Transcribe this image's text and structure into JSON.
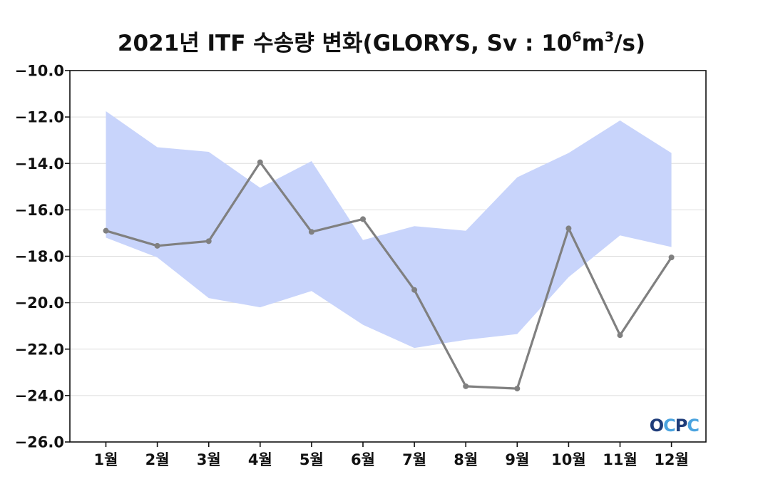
{
  "title": {
    "main": "2021년 ITF 수송량 변화(GLORYS, Sv : 10",
    "sup1": "6",
    "mid": "m",
    "sup2": "3",
    "end": "/s)"
  },
  "logo": {
    "text": "OCPC",
    "color_dark": "#1f3d7a",
    "color_light": "#4aa3df"
  },
  "colors": {
    "band": "#c8d4fb",
    "line": "#808080",
    "grid": "#dddddd"
  },
  "chart_data": {
    "type": "line",
    "categories": [
      "1월",
      "2월",
      "3월",
      "4월",
      "5월",
      "6월",
      "7월",
      "8월",
      "9월",
      "10월",
      "11월",
      "12월"
    ],
    "series": [
      {
        "values": [
          -16.9,
          -17.55,
          -17.35,
          -13.95,
          -16.95,
          -16.4,
          -19.45,
          -23.6,
          -23.7,
          -16.8,
          -21.4,
          -18.05
        ]
      }
    ],
    "band": {
      "upper": [
        -11.75,
        -13.3,
        -13.5,
        -15.05,
        -13.9,
        -17.3,
        -16.7,
        -16.9,
        -14.6,
        -13.55,
        -12.15,
        -13.55
      ],
      "lower": [
        -17.2,
        -18.05,
        -19.8,
        -20.2,
        -19.5,
        -20.95,
        -21.95,
        -21.6,
        -21.35,
        -18.9,
        -17.1,
        -17.6
      ]
    },
    "ylim": [
      -26.0,
      -10.0
    ],
    "yticks": [
      "-10.0",
      "-12.0",
      "-14.0",
      "-16.0",
      "-18.0",
      "-20.0",
      "-22.0",
      "-24.0",
      "-26.0"
    ],
    "xlabel": "",
    "ylabel": "",
    "grid": true
  }
}
